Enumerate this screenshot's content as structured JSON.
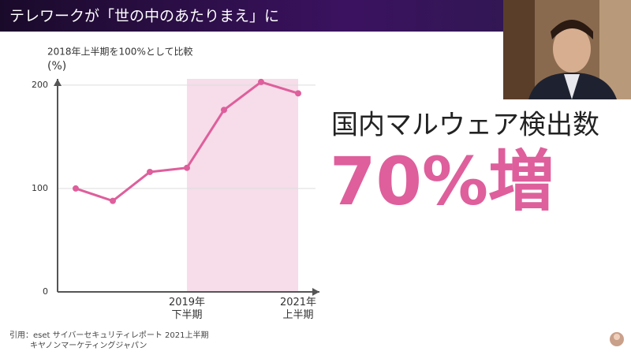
{
  "header": {
    "title": "テレワークが「世の中のあたりまえ」に"
  },
  "chart_data": {
    "type": "line",
    "ylabel_note": "2018年上半期を100%として比較",
    "ylabel": "(%)",
    "categories": [
      null,
      null,
      null,
      "2019年\n下半期",
      null,
      null,
      "2021年\n上半期"
    ],
    "series": [
      {
        "name": "国内マルウェア検出数",
        "color": "#de5f9c",
        "values": [
          100,
          88,
          116,
          120,
          176,
          203,
          192
        ]
      }
    ],
    "ylim": [
      0,
      206
    ],
    "yticks": [
      0,
      100,
      200
    ],
    "grid": true,
    "highlight_range": [
      "2019年\n下半期",
      "2021年\n上半期"
    ],
    "highlight_color": "#f7dcea"
  },
  "headline": {
    "subject": "国内マルウェア検出数",
    "figure": "70%増"
  },
  "source": {
    "line1": "引用：eset サイバーセキュリティレポート 2021上半期",
    "line2": "キヤノンマーケティングジャパン"
  }
}
